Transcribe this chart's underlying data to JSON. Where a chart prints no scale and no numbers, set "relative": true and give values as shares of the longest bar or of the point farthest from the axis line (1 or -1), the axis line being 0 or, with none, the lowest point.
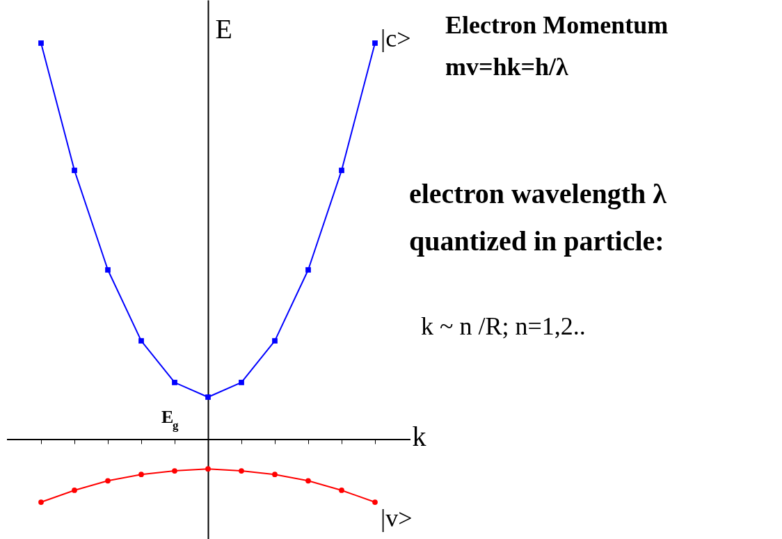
{
  "chart_data": {
    "type": "line",
    "relative": true,
    "xlabel": "k",
    "ylabel": "E",
    "categories": [
      null,
      null,
      null,
      null,
      null,
      null,
      null,
      null,
      null,
      null,
      null
    ],
    "series": [
      {
        "name": "|c>",
        "color": "#0000ff",
        "marker": "square",
        "values": [
          1,
          0.679,
          0.428,
          0.249,
          0.144,
          0.107,
          0.144,
          0.249,
          0.428,
          0.679,
          1
        ]
      },
      {
        "name": "|v>",
        "color": "#ff0000",
        "marker": "circle",
        "values": [
          -0.158,
          -0.128,
          -0.104,
          -0.088,
          -0.079,
          -0.074,
          -0.079,
          -0.088,
          -0.104,
          -0.128,
          -0.158
        ]
      }
    ],
    "annotations": [
      "E$_{g}$",
      "Electron Momentum",
      "mv=hk=h/λ",
      "electron wavelength λ",
      "quantized in particle:",
      "k ~ n /R;  n=1,2.."
    ],
    "grid": false,
    "line_style": "solid"
  }
}
